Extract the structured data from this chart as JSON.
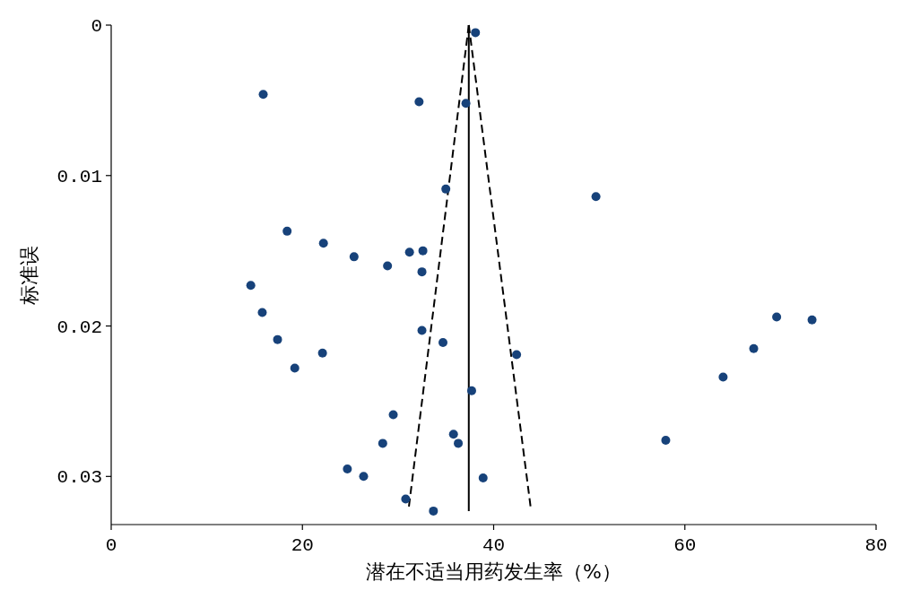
{
  "chart_data": {
    "type": "scatter",
    "xlabel": "潜在不适当用药发生率（%）",
    "ylabel": "标准误",
    "xlim": [
      0,
      80
    ],
    "xticks": [
      0,
      20,
      40,
      60,
      80
    ],
    "ylim": [
      0.0332,
      0
    ],
    "yticks": [
      0,
      0.01,
      0.02,
      0.03
    ],
    "grid": false,
    "series": [
      {
        "marker": "circle",
        "color": "#17427a",
        "x": [
          38.1,
          15.9,
          32.2,
          37.1,
          35.0,
          50.7,
          18.4,
          22.2,
          25.4,
          31.2,
          32.6,
          28.9,
          32.5,
          14.6,
          15.8,
          69.6,
          73.3,
          17.4,
          32.5,
          34.7,
          67.2,
          22.1,
          42.4,
          19.2,
          64.0,
          37.7,
          29.5,
          58.0,
          35.8,
          36.3,
          28.4,
          24.7,
          26.4,
          38.9,
          30.8,
          33.7
        ],
        "values": [
          0.0005,
          0.0046,
          0.0051,
          0.0052,
          0.0109,
          0.0114,
          0.0137,
          0.0145,
          0.0154,
          0.0151,
          0.015,
          0.016,
          0.0164,
          0.0173,
          0.0191,
          0.0194,
          0.0196,
          0.0209,
          0.0203,
          0.0211,
          0.0215,
          0.0218,
          0.0219,
          0.0228,
          0.0234,
          0.0243,
          0.0259,
          0.0276,
          0.0272,
          0.0278,
          0.0278,
          0.0295,
          0.03,
          0.0301,
          0.0315,
          0.0323
        ]
      },
      {
        "type": "line",
        "color": "#000000",
        "line_style": "solid",
        "marker": "none",
        "x": [
          37.4,
          37.4
        ],
        "values": [
          0,
          0.0323
        ]
      },
      {
        "type": "line",
        "color": "#000000",
        "line_style": "dashed",
        "marker": "none",
        "x": [
          37.4,
          31.1
        ],
        "values": [
          0,
          0.0322
        ]
      },
      {
        "type": "line",
        "color": "#000000",
        "line_style": "dashed",
        "marker": "none",
        "x": [
          37.4,
          43.9
        ],
        "values": [
          0,
          0.0322
        ]
      }
    ]
  }
}
